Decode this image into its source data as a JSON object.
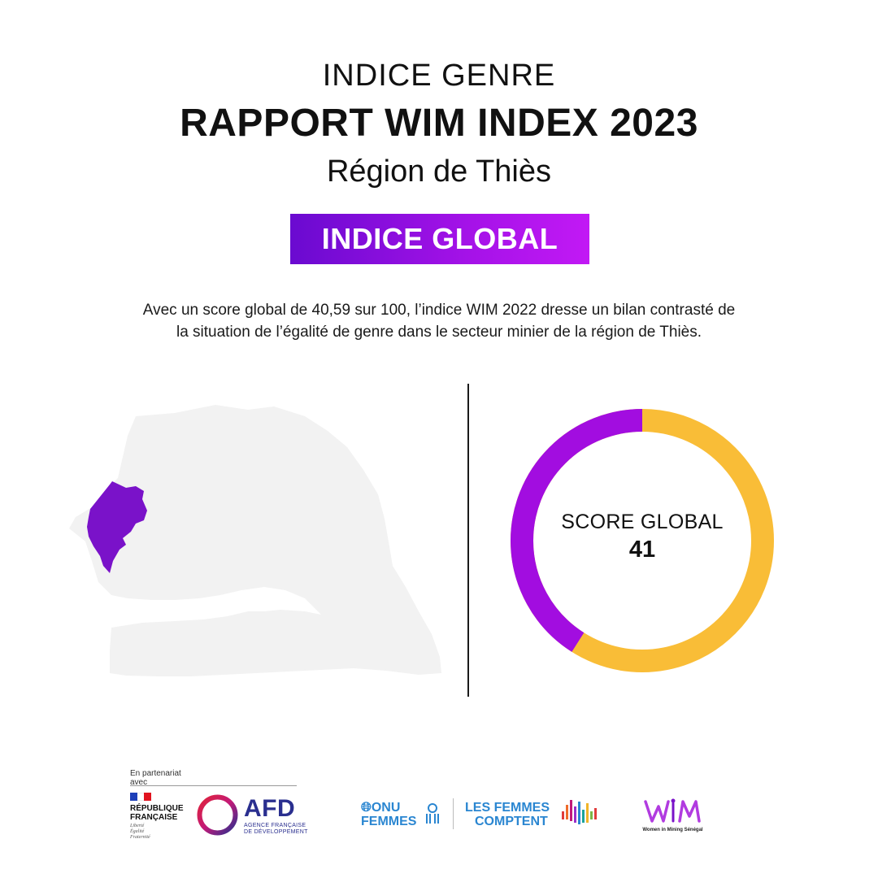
{
  "header": {
    "kicker": "INDICE GENRE",
    "title": "RAPPORT WIM INDEX 2023",
    "region": "Région de Thiès"
  },
  "badge": {
    "label": "INDICE GLOBAL",
    "colors": [
      "#6a0ad0",
      "#c219f5"
    ]
  },
  "description": {
    "line1": "Avec un score global de 40,59 sur 100, l’indice WIM 2022 dresse un bilan contrasté de",
    "line2": "la situation de l’égalité de genre dans le secteur minier de la région de Thiès."
  },
  "map": {
    "highlight_color": "#7a12c9",
    "base_color": "#f2f2f2"
  },
  "score": {
    "label": "SCORE GLOBAL",
    "value": "41",
    "fraction": 0.41,
    "filled_color": "#a20de0",
    "remaining_color": "#f9bd37"
  },
  "footer": {
    "partner_label_line1": "En partenariat",
    "partner_label_line2": "avec",
    "rf_name_line1": "RÉPUBLIQUE",
    "rf_name_line2": "FRANÇAISE",
    "rf_motto": [
      "Liberté",
      "Égalité",
      "Fraternité"
    ],
    "afd_name": "AFD",
    "afd_sub_line1": "AGENCE FRANÇAISE",
    "afd_sub_line2": "DE DÉVELOPPEMENT",
    "onu_line1": "ONU",
    "onu_line2": "FEMMES",
    "lfc_line1": "LES FEMMES",
    "lfc_line2": "COMPTENT",
    "wim_tagline": "Women in Mining Sénégal"
  }
}
